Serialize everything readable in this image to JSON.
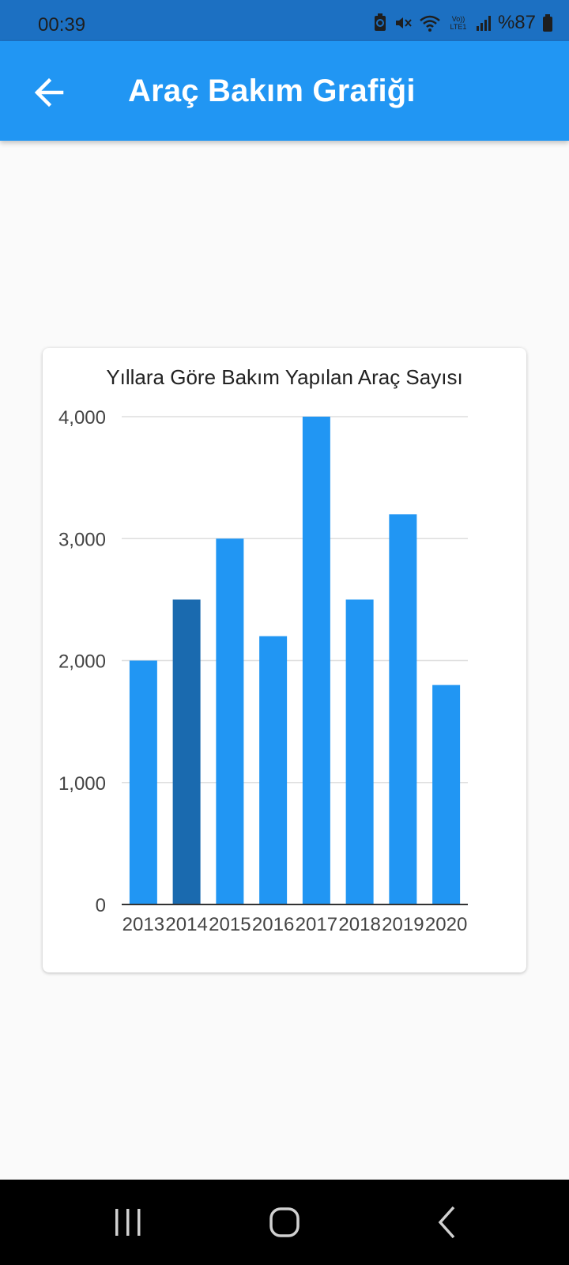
{
  "status_bar": {
    "time": "00:39",
    "battery": "%87",
    "network_label": "Vo)) LTE1"
  },
  "app_bar": {
    "title": "Araç Bakım Grafiği"
  },
  "chart_data": {
    "type": "bar",
    "title": "Yıllara Göre Bakım Yapılan Araç Sayısı",
    "categories": [
      "2013",
      "2014",
      "2015",
      "2016",
      "2017",
      "2018",
      "2019",
      "2020"
    ],
    "values": [
      2000,
      2500,
      3000,
      2200,
      4000,
      2500,
      3200,
      1800
    ],
    "ylim": [
      0,
      4000
    ],
    "yticks": [
      0,
      1000,
      2000,
      3000,
      4000
    ],
    "ytick_labels": [
      "0",
      "1,000",
      "2,000",
      "3,000",
      "4,000"
    ],
    "xlabel": "",
    "ylabel": "",
    "grid": true,
    "bar_color": "#2196f3",
    "highlight_color": "#1a6aaf",
    "highlighted_category": "2014"
  },
  "colors": {
    "app_bar": "#2196f3",
    "status_bar": "#1c70c2",
    "background": "#fafafa"
  }
}
